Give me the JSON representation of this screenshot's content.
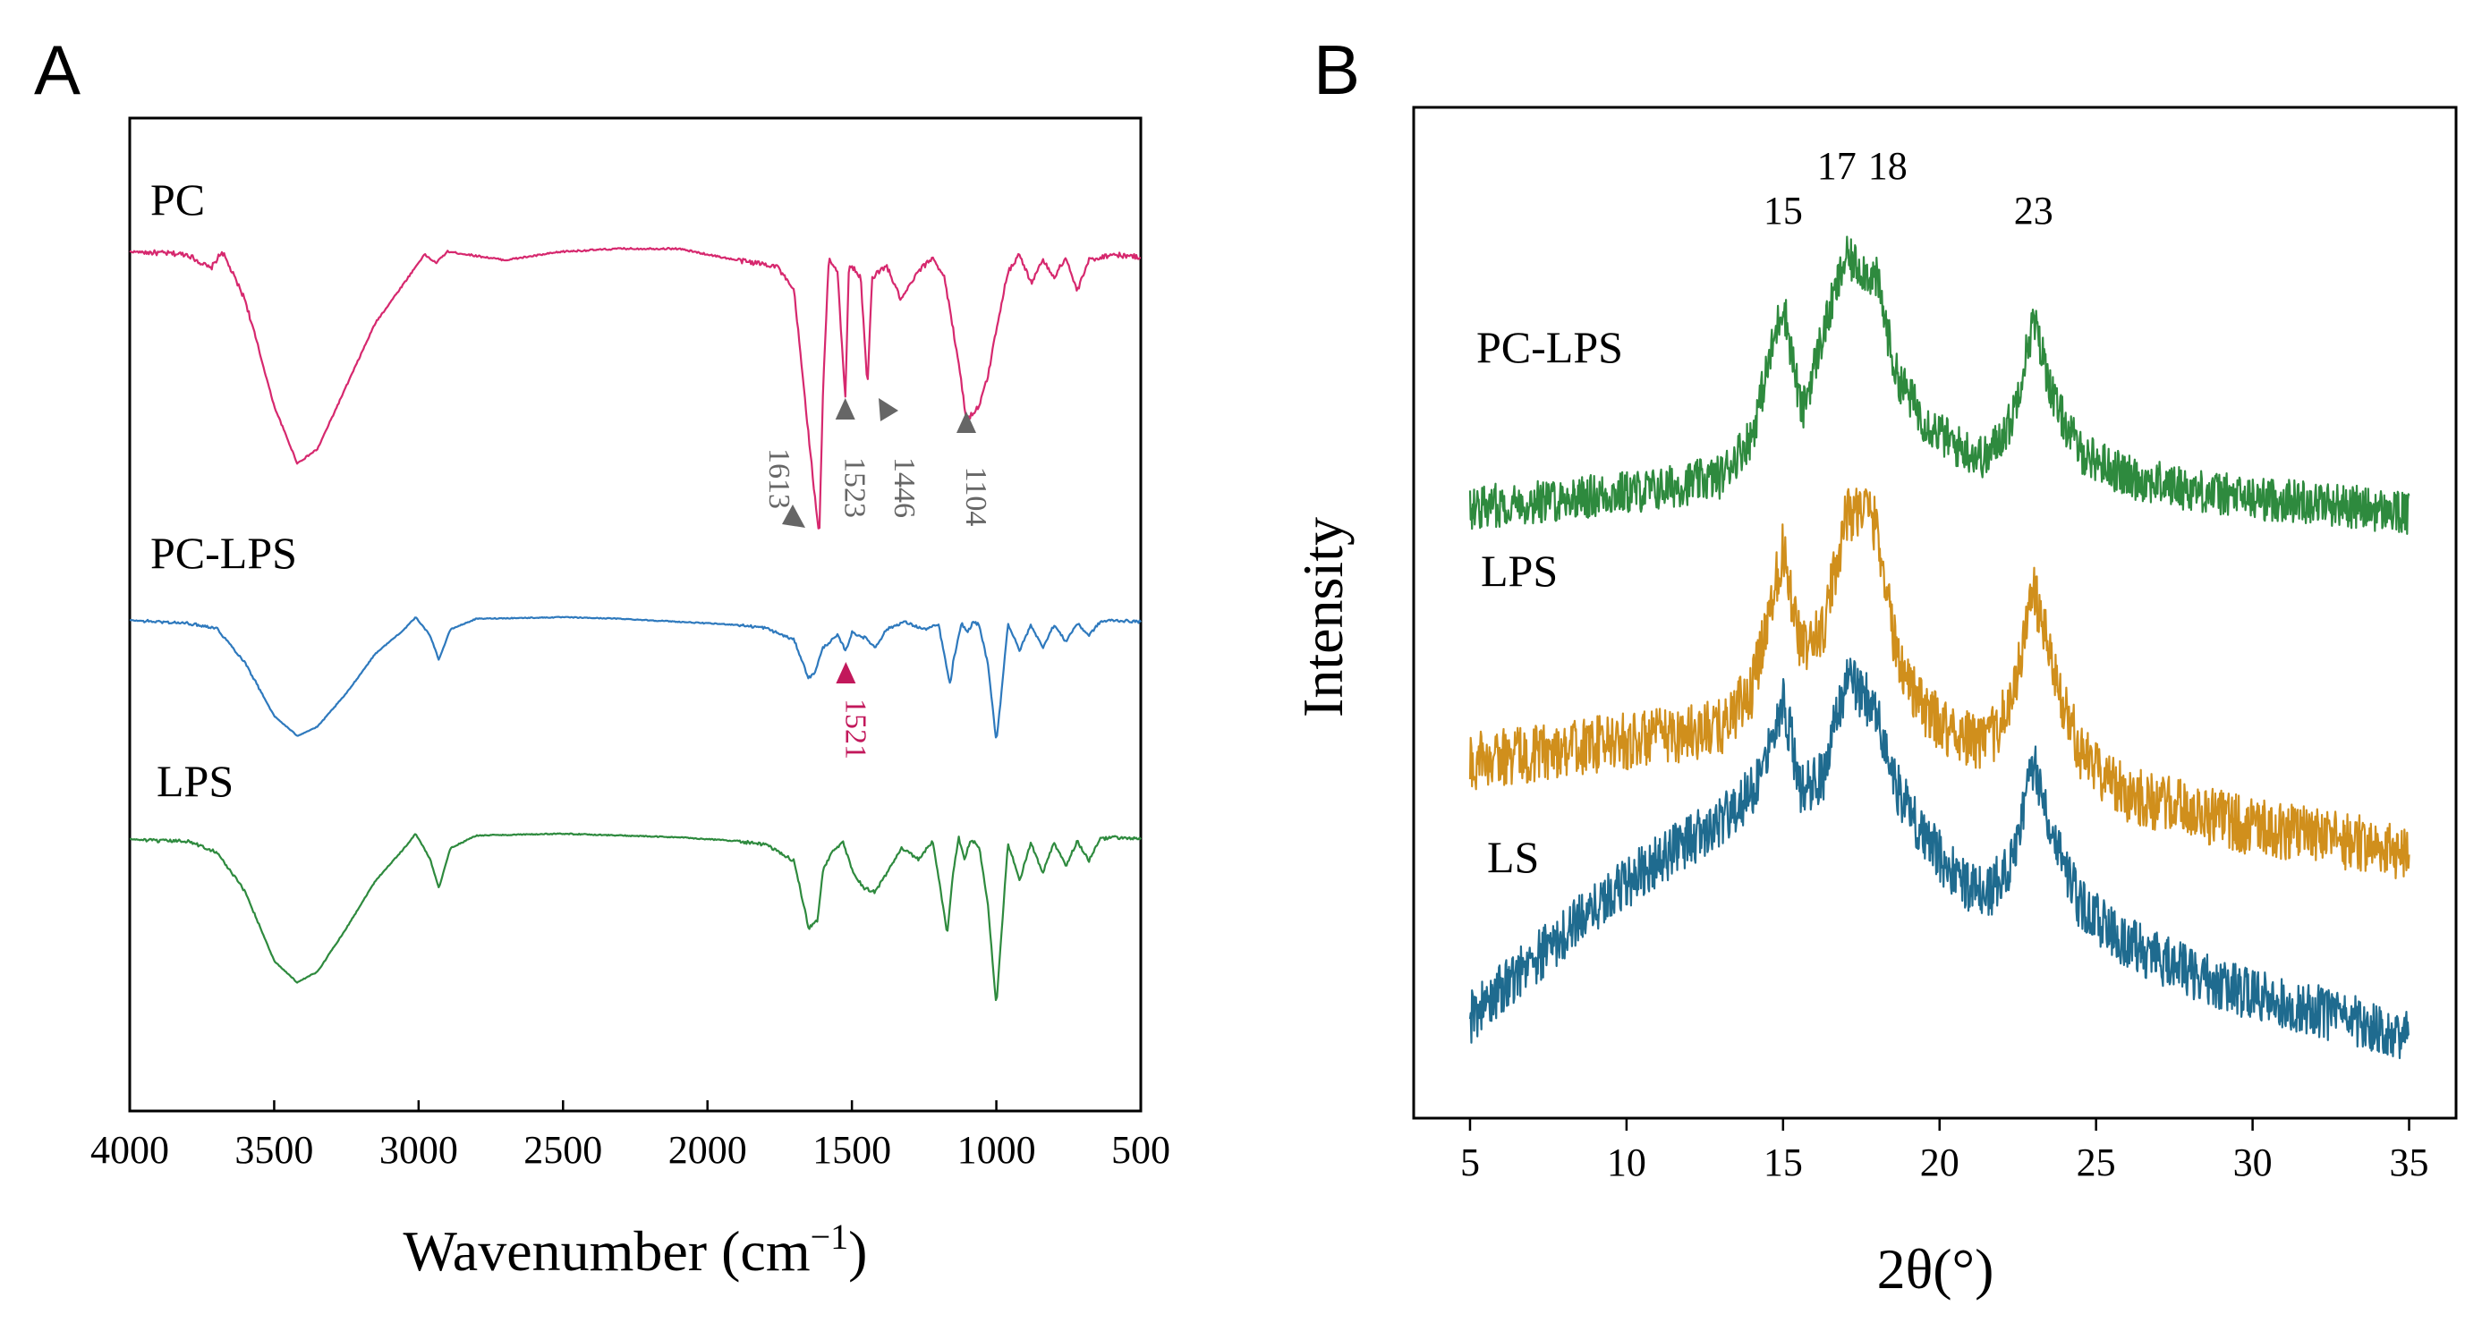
{
  "chart_data": [
    {
      "panel": "A",
      "type": "line",
      "title": "",
      "xlabel": "Wavenumber (cm",
      "xlabel_sup": "−1",
      "xlabel_close": ")",
      "ylabel": "",
      "xlim": [
        4000,
        500
      ],
      "x_reversed": true,
      "xticks": [
        "4000",
        "3500",
        "3000",
        "2500",
        "2000",
        "1500",
        "1000",
        "500"
      ],
      "grid": false,
      "series": [
        {
          "name": "PC",
          "color": "#d6286e",
          "points": [
            [
              4000,
              0.99
            ],
            [
              3800,
              0.98
            ],
            [
              3720,
              0.93
            ],
            [
              3680,
              0.99
            ],
            [
              3600,
              0.82
            ],
            [
              3500,
              0.45
            ],
            [
              3420,
              0.25
            ],
            [
              3350,
              0.3
            ],
            [
              3250,
              0.52
            ],
            [
              3150,
              0.74
            ],
            [
              3050,
              0.88
            ],
            [
              2980,
              0.98
            ],
            [
              2940,
              0.95
            ],
            [
              2900,
              0.99
            ],
            [
              2700,
              0.96
            ],
            [
              2500,
              0.99
            ],
            [
              2300,
              1.0
            ],
            [
              2100,
              1.0
            ],
            [
              1900,
              0.96
            ],
            [
              1760,
              0.94
            ],
            [
              1700,
              0.85
            ],
            [
              1660,
              0.45
            ],
            [
              1620,
              0.05
            ],
            [
              1613,
              0.0
            ],
            [
              1600,
              0.5
            ],
            [
              1580,
              0.97
            ],
            [
              1550,
              0.92
            ],
            [
              1523,
              0.47
            ],
            [
              1510,
              0.95
            ],
            [
              1470,
              0.9
            ],
            [
              1446,
              0.52
            ],
            [
              1430,
              0.9
            ],
            [
              1380,
              0.94
            ],
            [
              1330,
              0.82
            ],
            [
              1270,
              0.92
            ],
            [
              1220,
              0.97
            ],
            [
              1180,
              0.9
            ],
            [
              1130,
              0.6
            ],
            [
              1104,
              0.4
            ],
            [
              1060,
              0.45
            ],
            [
              1030,
              0.55
            ],
            [
              1000,
              0.72
            ],
            [
              960,
              0.92
            ],
            [
              920,
              0.98
            ],
            [
              880,
              0.88
            ],
            [
              840,
              0.96
            ],
            [
              800,
              0.9
            ],
            [
              760,
              0.97
            ],
            [
              720,
              0.85
            ],
            [
              680,
              0.96
            ],
            [
              600,
              0.98
            ],
            [
              500,
              0.97
            ]
          ]
        },
        {
          "name": "PC-LPS",
          "color": "#2e79bd",
          "points": [
            [
              4000,
              0.98
            ],
            [
              3900,
              0.97
            ],
            [
              3800,
              0.96
            ],
            [
              3700,
              0.93
            ],
            [
              3600,
              0.7
            ],
            [
              3500,
              0.35
            ],
            [
              3420,
              0.22
            ],
            [
              3350,
              0.28
            ],
            [
              3250,
              0.5
            ],
            [
              3150,
              0.76
            ],
            [
              3050,
              0.92
            ],
            [
              3010,
              1.0
            ],
            [
              2960,
              0.88
            ],
            [
              2930,
              0.72
            ],
            [
              2890,
              0.92
            ],
            [
              2800,
              0.99
            ],
            [
              2500,
              1.0
            ],
            [
              2300,
              0.99
            ],
            [
              2100,
              0.97
            ],
            [
              1900,
              0.95
            ],
            [
              1800,
              0.93
            ],
            [
              1700,
              0.85
            ],
            [
              1650,
              0.6
            ],
            [
              1630,
              0.63
            ],
            [
              1600,
              0.8
            ],
            [
              1550,
              0.88
            ],
            [
              1521,
              0.78
            ],
            [
              1500,
              0.9
            ],
            [
              1450,
              0.86
            ],
            [
              1420,
              0.8
            ],
            [
              1380,
              0.92
            ],
            [
              1320,
              0.97
            ],
            [
              1250,
              0.92
            ],
            [
              1200,
              0.95
            ],
            [
              1160,
              0.55
            ],
            [
              1150,
              0.7
            ],
            [
              1120,
              0.96
            ],
            [
              1100,
              0.9
            ],
            [
              1080,
              0.97
            ],
            [
              1060,
              0.95
            ],
            [
              1030,
              0.7
            ],
            [
              1000,
              0.18
            ],
            [
              980,
              0.55
            ],
            [
              960,
              0.96
            ],
            [
              920,
              0.78
            ],
            [
              880,
              0.95
            ],
            [
              840,
              0.8
            ],
            [
              800,
              0.95
            ],
            [
              760,
              0.84
            ],
            [
              720,
              0.96
            ],
            [
              680,
              0.88
            ],
            [
              640,
              0.97
            ],
            [
              600,
              0.98
            ],
            [
              500,
              0.97
            ]
          ]
        },
        {
          "name": "LPS",
          "color": "#2e8a3e",
          "points": [
            [
              4000,
              0.97
            ],
            [
              3900,
              0.96
            ],
            [
              3800,
              0.96
            ],
            [
              3700,
              0.9
            ],
            [
              3600,
              0.68
            ],
            [
              3500,
              0.3
            ],
            [
              3420,
              0.18
            ],
            [
              3350,
              0.24
            ],
            [
              3250,
              0.48
            ],
            [
              3150,
              0.74
            ],
            [
              3050,
              0.92
            ],
            [
              3010,
              1.0
            ],
            [
              2960,
              0.86
            ],
            [
              2930,
              0.7
            ],
            [
              2890,
              0.92
            ],
            [
              2800,
              0.99
            ],
            [
              2500,
              1.0
            ],
            [
              2300,
              0.99
            ],
            [
              2100,
              0.98
            ],
            [
              1900,
              0.96
            ],
            [
              1800,
              0.94
            ],
            [
              1700,
              0.85
            ],
            [
              1650,
              0.48
            ],
            [
              1620,
              0.52
            ],
            [
              1600,
              0.8
            ],
            [
              1560,
              0.92
            ],
            [
              1530,
              0.95
            ],
            [
              1500,
              0.8
            ],
            [
              1460,
              0.7
            ],
            [
              1420,
              0.68
            ],
            [
              1380,
              0.78
            ],
            [
              1330,
              0.92
            ],
            [
              1270,
              0.86
            ],
            [
              1220,
              0.96
            ],
            [
              1170,
              0.45
            ],
            [
              1150,
              0.78
            ],
            [
              1130,
              0.98
            ],
            [
              1110,
              0.85
            ],
            [
              1090,
              0.97
            ],
            [
              1060,
              0.93
            ],
            [
              1030,
              0.62
            ],
            [
              1000,
              0.05
            ],
            [
              980,
              0.5
            ],
            [
              960,
              0.95
            ],
            [
              920,
              0.74
            ],
            [
              880,
              0.95
            ],
            [
              840,
              0.78
            ],
            [
              800,
              0.95
            ],
            [
              760,
              0.82
            ],
            [
              720,
              0.96
            ],
            [
              680,
              0.85
            ],
            [
              640,
              0.97
            ],
            [
              600,
              0.98
            ],
            [
              500,
              0.97
            ]
          ]
        }
      ],
      "series_labels": [
        "PC",
        "PC-LPS",
        "LPS"
      ],
      "annotations": [
        {
          "text": "1613",
          "series": "PC",
          "x": 1613,
          "color": "#666666"
        },
        {
          "text": "1523",
          "series": "PC",
          "x": 1523,
          "color": "#666666"
        },
        {
          "text": "1446",
          "series": "PC",
          "x": 1446,
          "color": "#666666"
        },
        {
          "text": "1104",
          "series": "PC",
          "x": 1104,
          "color": "#666666"
        },
        {
          "text": "1521",
          "series": "PC-LPS",
          "x": 1521,
          "color": "#c2185b"
        }
      ]
    },
    {
      "panel": "B",
      "type": "line",
      "title": "",
      "xlabel": "2θ(°)",
      "ylabel": "Intensity",
      "xlim": [
        3.2,
        36.5
      ],
      "xticks": [
        "5",
        "10",
        "15",
        "20",
        "25",
        "30",
        "35"
      ],
      "grid": false,
      "peak_labels": [
        "15",
        "17",
        "18",
        "23"
      ],
      "peak_positions": [
        15,
        17,
        18,
        23
      ],
      "series": [
        {
          "name": "PC-LPS",
          "color": "#2e8a3e",
          "points": [
            [
              5,
              0.12
            ],
            [
              7,
              0.14
            ],
            [
              9,
              0.16
            ],
            [
              11,
              0.18
            ],
            [
              13,
              0.22
            ],
            [
              14,
              0.35
            ],
            [
              15,
              0.78
            ],
            [
              15.6,
              0.42
            ],
            [
              16.2,
              0.65
            ],
            [
              17,
              0.92
            ],
            [
              17.6,
              0.88
            ],
            [
              18,
              0.85
            ],
            [
              18.6,
              0.55
            ],
            [
              19.5,
              0.4
            ],
            [
              20.5,
              0.32
            ],
            [
              21.5,
              0.28
            ],
            [
              22.3,
              0.4
            ],
            [
              23,
              0.72
            ],
            [
              23.7,
              0.45
            ],
            [
              24.5,
              0.3
            ],
            [
              26,
              0.22
            ],
            [
              28,
              0.18
            ],
            [
              30,
              0.15
            ],
            [
              32,
              0.14
            ],
            [
              35,
              0.1
            ]
          ]
        },
        {
          "name": "LPS",
          "color": "#d08f1c",
          "points": [
            [
              5,
              0.28
            ],
            [
              7,
              0.3
            ],
            [
              9,
              0.32
            ],
            [
              11,
              0.34
            ],
            [
              13,
              0.36
            ],
            [
              14,
              0.45
            ],
            [
              15,
              0.8
            ],
            [
              15.6,
              0.55
            ],
            [
              16.3,
              0.6
            ],
            [
              17,
              0.88
            ],
            [
              17.6,
              0.9
            ],
            [
              18,
              0.85
            ],
            [
              18.6,
              0.55
            ],
            [
              19.5,
              0.4
            ],
            [
              20.5,
              0.35
            ],
            [
              21.5,
              0.32
            ],
            [
              22.3,
              0.42
            ],
            [
              23,
              0.7
            ],
            [
              23.7,
              0.48
            ],
            [
              24.5,
              0.3
            ],
            [
              26,
              0.2
            ],
            [
              28,
              0.16
            ],
            [
              30,
              0.12
            ],
            [
              32,
              0.1
            ],
            [
              35,
              0.06
            ]
          ]
        },
        {
          "name": "LS",
          "color": "#1f6b8f",
          "points": [
            [
              5,
              0.1
            ],
            [
              7,
              0.25
            ],
            [
              9,
              0.4
            ],
            [
              11,
              0.52
            ],
            [
              13,
              0.62
            ],
            [
              14,
              0.7
            ],
            [
              15,
              0.95
            ],
            [
              15.6,
              0.7
            ],
            [
              16.3,
              0.75
            ],
            [
              17,
              1.0
            ],
            [
              17.6,
              0.96
            ],
            [
              18,
              0.9
            ],
            [
              18.6,
              0.72
            ],
            [
              19.5,
              0.58
            ],
            [
              20.5,
              0.48
            ],
            [
              21.5,
              0.42
            ],
            [
              22.3,
              0.52
            ],
            [
              23,
              0.78
            ],
            [
              23.7,
              0.58
            ],
            [
              24.5,
              0.4
            ],
            [
              26,
              0.3
            ],
            [
              28,
              0.22
            ],
            [
              30,
              0.16
            ],
            [
              32,
              0.12
            ],
            [
              35,
              0.05
            ]
          ]
        }
      ],
      "series_labels": [
        "PC-LPS",
        "LPS",
        "LS"
      ]
    }
  ]
}
